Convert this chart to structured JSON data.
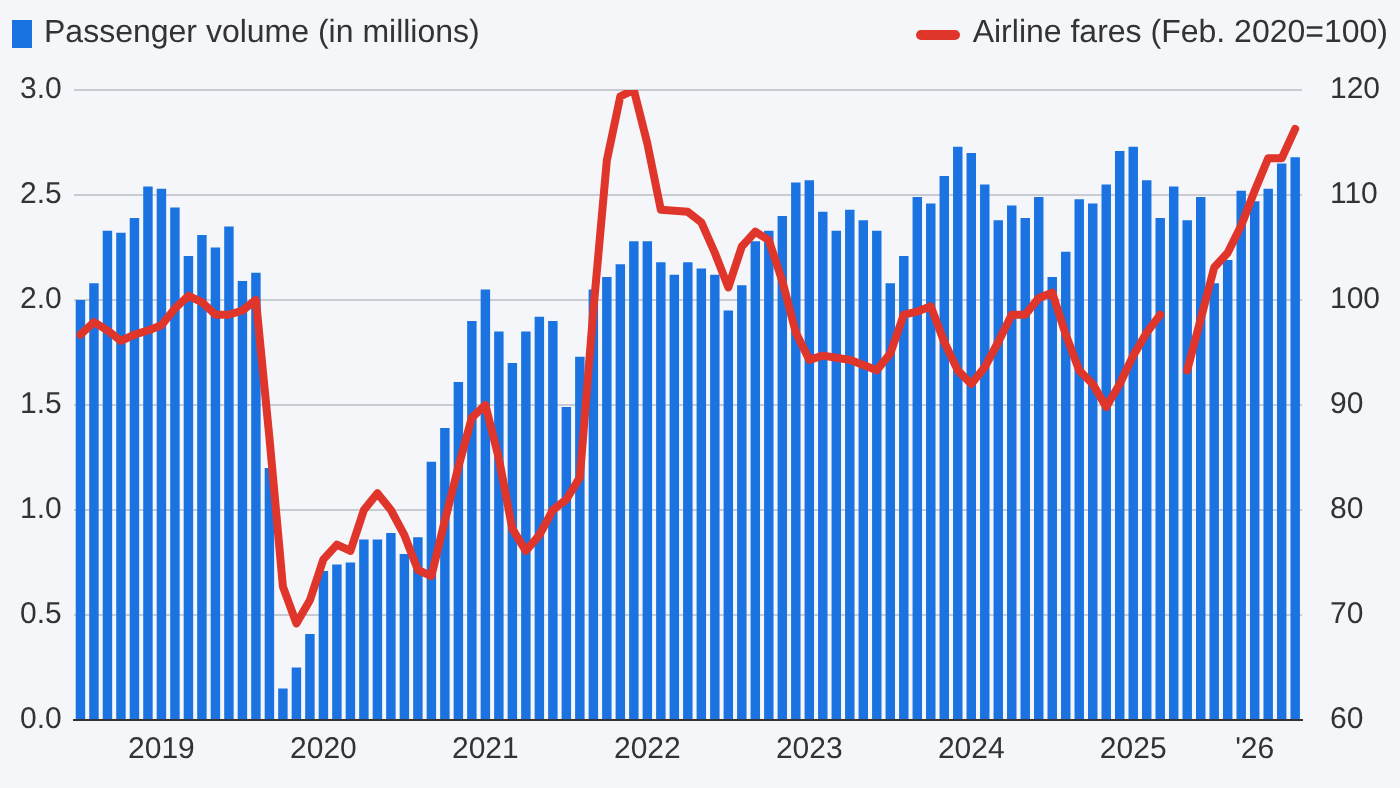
{
  "chart_data": {
    "type": "bar",
    "categories": [
      null,
      null,
      null,
      null,
      null,
      null,
      "2019",
      null,
      null,
      null,
      null,
      null,
      null,
      null,
      null,
      null,
      null,
      null,
      "2020",
      null,
      null,
      null,
      null,
      null,
      null,
      null,
      null,
      null,
      null,
      null,
      "2021",
      null,
      null,
      null,
      null,
      null,
      null,
      null,
      null,
      null,
      null,
      null,
      "2022",
      null,
      null,
      null,
      null,
      null,
      null,
      null,
      null,
      null,
      null,
      null,
      "2023",
      null,
      null,
      null,
      null,
      null,
      null,
      null,
      null,
      null,
      null,
      null,
      "2024",
      null,
      null,
      null,
      null,
      null,
      null,
      null,
      null,
      null,
      null,
      null,
      "2025",
      null,
      null,
      null,
      null,
      null,
      null,
      null,
      null,
      "'26",
      null,
      null,
      null
    ],
    "series": [
      {
        "name": "Passenger volume (in millions)",
        "color": "#1a73e0",
        "values": [
          2.0,
          2.08,
          2.33,
          2.32,
          2.39,
          2.54,
          2.53,
          2.44,
          2.21,
          2.31,
          2.25,
          2.35,
          2.09,
          2.13,
          1.2,
          0.15,
          0.25,
          0.41,
          0.71,
          0.74,
          0.75,
          0.86,
          0.86,
          0.89,
          0.79,
          0.87,
          1.23,
          1.39,
          1.61,
          1.9,
          2.05,
          1.85,
          1.7,
          1.85,
          1.92,
          1.9,
          1.49,
          1.73,
          2.05,
          2.11,
          2.17,
          2.28,
          2.28,
          2.18,
          2.12,
          2.18,
          2.15,
          2.12,
          1.95,
          2.07,
          2.28,
          2.33,
          2.4,
          2.56,
          2.57,
          2.42,
          2.33,
          2.43,
          2.38,
          2.33,
          2.08,
          2.21,
          2.49,
          2.46,
          2.59,
          2.73,
          2.7,
          2.55,
          2.38,
          2.45,
          2.39,
          2.49,
          2.11,
          2.23,
          2.48,
          2.46,
          2.55,
          2.71,
          2.73,
          2.57,
          2.39,
          2.54,
          2.38,
          2.49,
          2.08,
          2.19,
          2.52,
          2.47,
          2.53,
          2.65,
          2.68
        ]
      },
      {
        "name": "Airline fares (Feb. 2020=100)",
        "type": "line",
        "axis": "y2",
        "color": "#e0352b",
        "values": [
          96.7,
          97.9,
          97.1,
          96.1,
          96.7,
          97.1,
          97.6,
          99.2,
          100.4,
          99.8,
          98.6,
          98.6,
          99.0,
          100,
          86.9,
          72.7,
          69.2,
          71.4,
          75.3,
          76.7,
          76.1,
          80,
          81.6,
          80,
          77.6,
          74.3,
          73.7,
          79,
          84.1,
          88.8,
          90,
          84.9,
          78.2,
          76.1,
          77.6,
          80,
          81,
          83.1,
          99,
          113.3,
          119.4,
          120,
          114.9,
          108.6,
          108.5,
          108.4,
          107.4,
          104.5,
          101.2,
          105.1,
          106.5,
          105.7,
          101.8,
          96.9,
          94.3,
          94.7,
          94.5,
          94.3,
          93.8,
          93.3,
          94.9,
          98.6,
          98.9,
          99.4,
          96,
          93.3,
          92,
          93.6,
          96,
          98.6,
          98.6,
          100.2,
          100.7,
          96.7,
          93.3,
          92,
          89.8,
          92,
          94.7,
          96.9,
          98.6,
          null,
          93.3,
          98.2,
          103.1,
          104.5,
          107.1,
          110.4,
          113.5,
          113.5,
          116.3
        ]
      }
    ],
    "ylim": [
      0,
      3
    ],
    "yticks": [
      {
        "value": 0,
        "label": "0.0"
      },
      0.5,
      {
        "value": 1,
        "label": "1.0"
      },
      1.5,
      {
        "value": 2,
        "label": "2.0"
      },
      2.5,
      {
        "value": 3,
        "label": "3.0"
      }
    ],
    "y2lim": [
      60,
      120
    ],
    "y2ticks": [
      60,
      70,
      80,
      90,
      100,
      110,
      120
    ],
    "grid": "y",
    "legend": "top",
    "marker": "none",
    "line_style": "solid"
  }
}
